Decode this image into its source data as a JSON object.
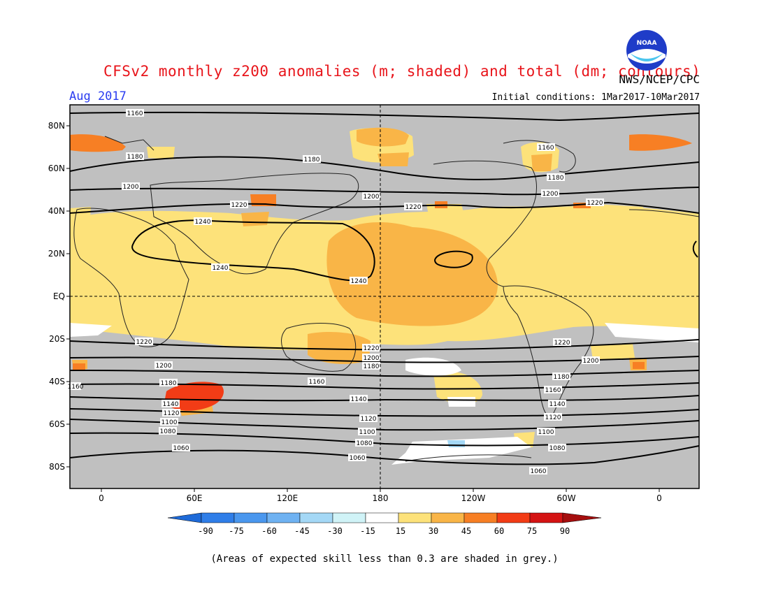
{
  "header": {
    "title": "CFSv2 monthly z200 anomalies (m; shaded) and total (dm; contours)",
    "agency": "NWS/NCEP/CPC",
    "month": "Aug 2017",
    "initial_conditions": "Initial conditions: 1Mar2017-10Mar2017",
    "logo_text": "NOAA"
  },
  "map": {
    "lat_labels": [
      "80N",
      "60N",
      "40N",
      "20N",
      "EQ",
      "20S",
      "40S",
      "60S",
      "80S"
    ],
    "lon_labels": [
      "0",
      "60E",
      "120E",
      "180",
      "120W",
      "60W",
      "0"
    ],
    "contour_labels": [
      "1060",
      "1080",
      "1100",
      "1120",
      "1140",
      "1160",
      "1180",
      "1200",
      "1220",
      "1240"
    ]
  },
  "colorbar": {
    "labels": [
      "-90",
      "-75",
      "-60",
      "-45",
      "-30",
      "-15",
      "15",
      "30",
      "45",
      "60",
      "75",
      "90"
    ],
    "colors": [
      "#1e6ad8",
      "#2f7ee8",
      "#4a97ee",
      "#6fb2f2",
      "#a4d8f6",
      "#d0f3f7",
      "#ffffff",
      "#fde27a",
      "#f9b547",
      "#f77f24",
      "#f23c16",
      "#d41313",
      "#a50e0e"
    ],
    "skill_grey": "#c0c0c0"
  },
  "footnote": "(Areas of expected skill less than 0.3 are shaded in grey.)",
  "colors": {
    "title": "#e8141a",
    "month": "#2a3cf0"
  }
}
